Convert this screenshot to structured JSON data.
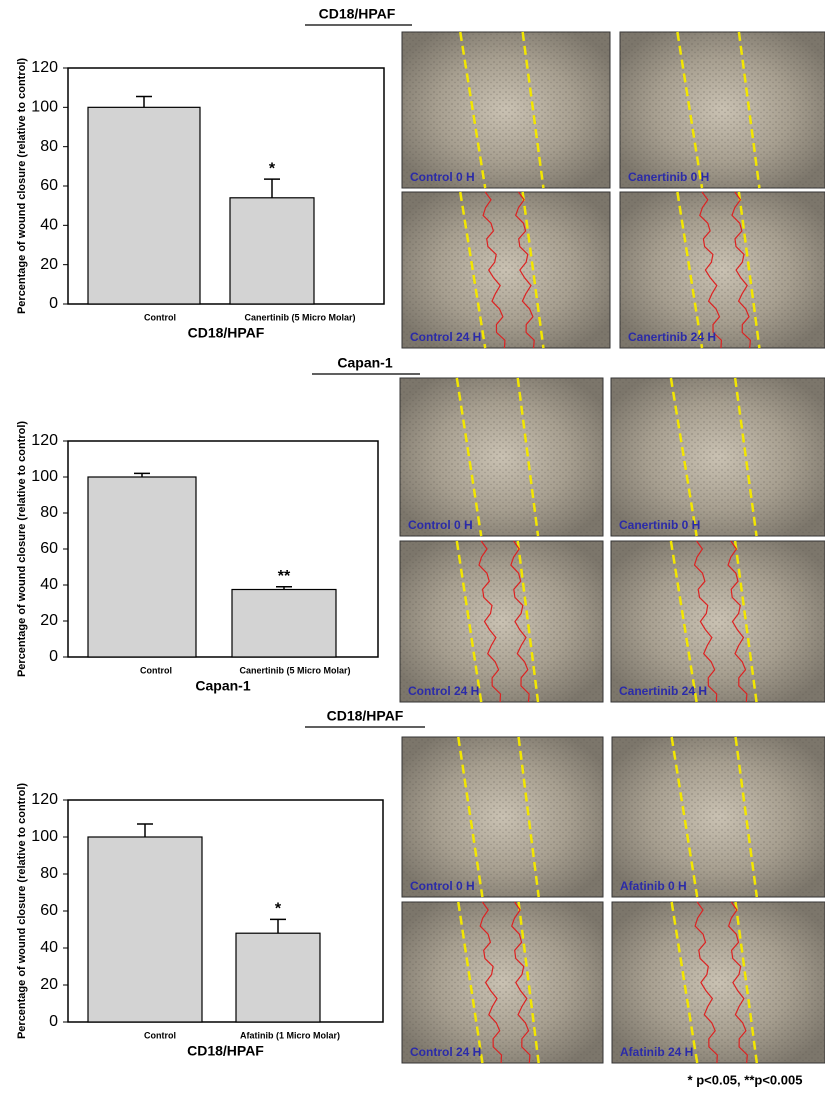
{
  "chart_data": [
    {
      "type": "bar",
      "heading": "CD18/HPAF",
      "xlabel": "CD18/HPAF",
      "ylabel": "Percentage of wound closure (relative to control)",
      "categories": [
        "Control",
        "Canertinib (5 Micro Molar)"
      ],
      "values": [
        100,
        54
      ],
      "errors": [
        5.5,
        9.5
      ],
      "color": "#d3d3d3",
      "annotations": [
        {
          "text": "*",
          "category": 1
        }
      ],
      "ylim": [
        0,
        120
      ],
      "yticks": [
        0,
        20,
        40,
        60,
        80,
        100,
        120
      ],
      "image_labels": [
        "Control 0 H",
        "Canertinib 0 H",
        "Control 24 H",
        "Canertinib 24 H"
      ]
    },
    {
      "type": "bar",
      "heading": "Capan-1",
      "xlabel": "Capan-1",
      "ylabel": "Percentage of wound closure (relative to control)",
      "categories": [
        "Control",
        "Canertinib (5 Micro Molar)"
      ],
      "values": [
        100,
        37.5
      ],
      "errors": [
        2,
        1.5
      ],
      "color": "#d3d3d3",
      "annotations": [
        {
          "text": "**",
          "category": 1
        }
      ],
      "ylim": [
        0,
        120
      ],
      "yticks": [
        0,
        20,
        40,
        60,
        80,
        100,
        120
      ],
      "image_labels": [
        "Control 0 H",
        "Canertinib 0 H",
        "Control 24 H",
        "Canertinib 24 H"
      ]
    },
    {
      "type": "bar",
      "heading": "CD18/HPAF",
      "xlabel": "CD18/HPAF",
      "ylabel": "Percentage of wound closure (relative to control)",
      "categories": [
        "Control",
        "Afatinib (1 Micro Molar)"
      ],
      "values": [
        100,
        48
      ],
      "errors": [
        7,
        7.5
      ],
      "color": "#d3d3d3",
      "annotations": [
        {
          "text": "*",
          "category": 1
        }
      ],
      "ylim": [
        0,
        120
      ],
      "yticks": [
        0,
        20,
        40,
        60,
        80,
        100,
        120
      ],
      "image_labels": [
        "Control 0 H",
        "Afatinib 0 H",
        "Control 24 H",
        "Afatinib 24 H"
      ]
    }
  ],
  "footnote": "* p<0.05, **p<0.005"
}
